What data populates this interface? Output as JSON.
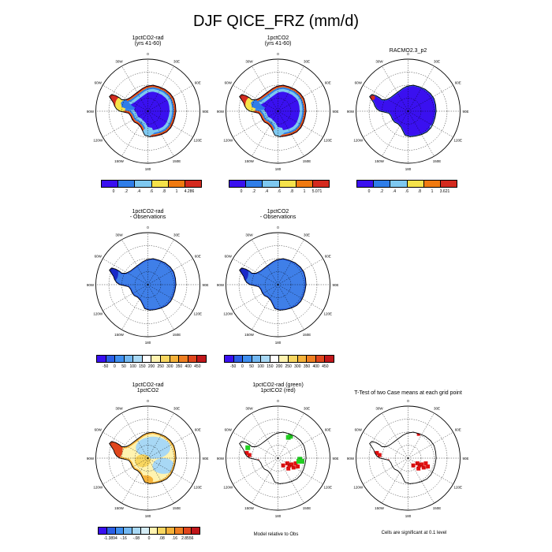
{
  "title": "DJF QICE_FRZ (mm/d)",
  "lon_labels": [
    "0",
    "30E",
    "60E",
    "90E",
    "120E",
    "150E",
    "180",
    "150W",
    "120W",
    "90W",
    "60W",
    "30W"
  ],
  "panels": [
    {
      "id": "p1",
      "title": "1pctCO2-rad\n(yrs 41-60)",
      "style": "frz-rad"
    },
    {
      "id": "p2",
      "title": "1pctCO2\n(yrs 41-60)",
      "style": "frz-co2"
    },
    {
      "id": "p3",
      "title": "RACMO2.3_p2",
      "style": "frz-obs"
    },
    {
      "id": "p4",
      "title": "1pctCO2-rad\n- Observations",
      "style": "diff"
    },
    {
      "id": "p5",
      "title": "1pctCO2\n- Observations",
      "style": "diff"
    },
    {
      "id": "p6",
      "title": "1pctCO2-rad\n1pctCO2",
      "style": "case-diff"
    },
    {
      "id": "p7",
      "title": "1pctCO2-rad (green)\n1pctCO2 (red)",
      "style": "rel-obs"
    },
    {
      "id": "p8",
      "title": "T-Test of two Case means at each grid point",
      "style": "ttest"
    }
  ],
  "colorbars": [
    {
      "id": "cb1",
      "colors": [
        "#3a10f0",
        "#2f7de8",
        "#7ec8f0",
        "#f5e24a",
        "#f07a10",
        "#d42a1e"
      ],
      "ticks": [
        "0",
        ".2",
        ".4",
        ".6",
        ".8",
        "1",
        "4.286"
      ]
    },
    {
      "id": "cb2",
      "colors": [
        "#3a10f0",
        "#2f7de8",
        "#7ec8f0",
        "#f5e24a",
        "#f07a10",
        "#d42a1e"
      ],
      "ticks": [
        "0",
        ".2",
        ".4",
        ".6",
        ".8",
        "1",
        "5.071"
      ]
    },
    {
      "id": "cb3",
      "colors": [
        "#3a10f0",
        "#2f7de8",
        "#7ec8f0",
        "#f5e24a",
        "#f07a10",
        "#d42a1e"
      ],
      "ticks": [
        "0",
        ".2",
        ".4",
        ".6",
        ".8",
        "1",
        "3.621"
      ]
    },
    {
      "id": "cb4",
      "colors": [
        "#3a10f0",
        "#2b5fe6",
        "#3f8ff0",
        "#73b8f2",
        "#a8d8f5",
        "#ffffff",
        "#fff3b0",
        "#f8d660",
        "#f5b23a",
        "#ef7f22",
        "#e0461c",
        "#c0161a"
      ],
      "ticks": [
        "-50",
        "0",
        "50",
        "100",
        "150",
        "200",
        "250",
        "300",
        "350",
        "400",
        "450"
      ]
    },
    {
      "id": "cb5",
      "colors": [
        "#3a10f0",
        "#2b5fe6",
        "#3f8ff0",
        "#73b8f2",
        "#a8d8f5",
        "#ffffff",
        "#fff3b0",
        "#f8d660",
        "#f5b23a",
        "#ef7f22",
        "#e0461c",
        "#c0161a"
      ],
      "ticks": [
        "-50",
        "0",
        "50",
        "100",
        "150",
        "200",
        "250",
        "300",
        "350",
        "400",
        "450"
      ]
    },
    {
      "id": "cb6",
      "colors": [
        "#3a10f0",
        "#2b5fe6",
        "#3f8ff0",
        "#73b8f2",
        "#a8d8f5",
        "#d4ecf5",
        "#fff3b0",
        "#f8d660",
        "#f5b23a",
        "#ef7f22",
        "#e0461c",
        "#c0161a"
      ],
      "ticks": [
        "-1.3894",
        "-.16",
        "-.08",
        "0",
        ".08",
        ".16",
        "2.8556"
      ]
    }
  ],
  "notes": {
    "rel_obs": "Model relative to Obs",
    "ttest": "Cells are significant at 0.1 level"
  }
}
